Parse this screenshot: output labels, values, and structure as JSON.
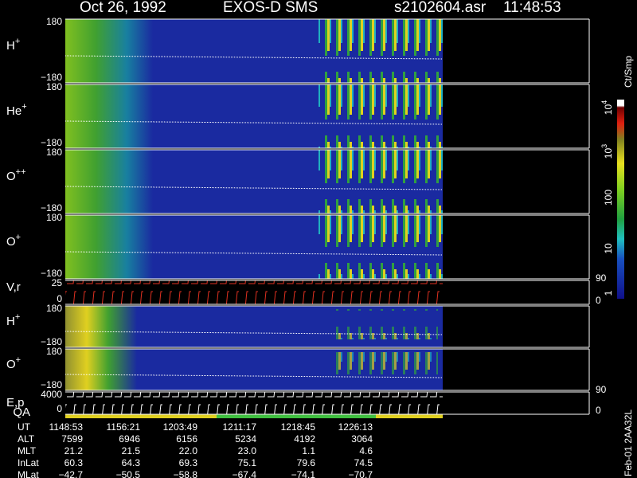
{
  "header": {
    "date": "Oct 26, 1992",
    "instrument": "EXOS-D SMS",
    "file": "s2102604.asr",
    "time": "11:48:53"
  },
  "panels": [
    {
      "label": "H",
      "sup": "+",
      "top": "180",
      "bottom": "−180"
    },
    {
      "label": "He",
      "sup": "+",
      "top": "180",
      "bottom": "−180"
    },
    {
      "label": "O",
      "sup": "++",
      "top": "180",
      "bottom": "−180"
    },
    {
      "label": "O",
      "sup": "+",
      "top": "180",
      "bottom": "−180"
    },
    {
      "label": "V,r",
      "top": "25",
      "bottom": "0",
      "right_top": "90",
      "right_bottom": "0"
    },
    {
      "label": "H",
      "sup": "+",
      "top": "180",
      "bottom": "−180"
    },
    {
      "label": "O",
      "sup": "+",
      "top": "180",
      "bottom": "−180"
    },
    {
      "label": "E,p",
      "top": "4000",
      "bottom": "0",
      "right_top": "90",
      "right_bottom": "0"
    }
  ],
  "qa_label": "QA",
  "colorbar": {
    "title": "Ct/Smp",
    "labels": [
      {
        "base": "10",
        "exp": "4"
      },
      {
        "base": "10",
        "exp": "3"
      },
      {
        "base": "100"
      },
      {
        "base": "10"
      },
      {
        "base": "1"
      }
    ]
  },
  "ephemeris": [
    {
      "name": "UT",
      "values": [
        "1148:53",
        "1156:21",
        "1203:49",
        "1211:17",
        "1218:45",
        "1226:13"
      ]
    },
    {
      "name": "ALT",
      "values": [
        "7599",
        "6946",
        "6156",
        "5234",
        "4192",
        "3064"
      ]
    },
    {
      "name": "MLT",
      "values": [
        "21.2",
        "21.5",
        "22.0",
        "23.0",
        "1.1",
        "4.6"
      ]
    },
    {
      "name": "InLat",
      "values": [
        "60.3",
        "64.3",
        "69.3",
        "75.1",
        "79.6",
        "74.5"
      ]
    },
    {
      "name": "MLat",
      "values": [
        "−42.7",
        "−50.5",
        "−58.8",
        "−67.4",
        "−74.1",
        "−70.7"
      ]
    }
  ],
  "footer": "Feb-01 2AA32L"
}
